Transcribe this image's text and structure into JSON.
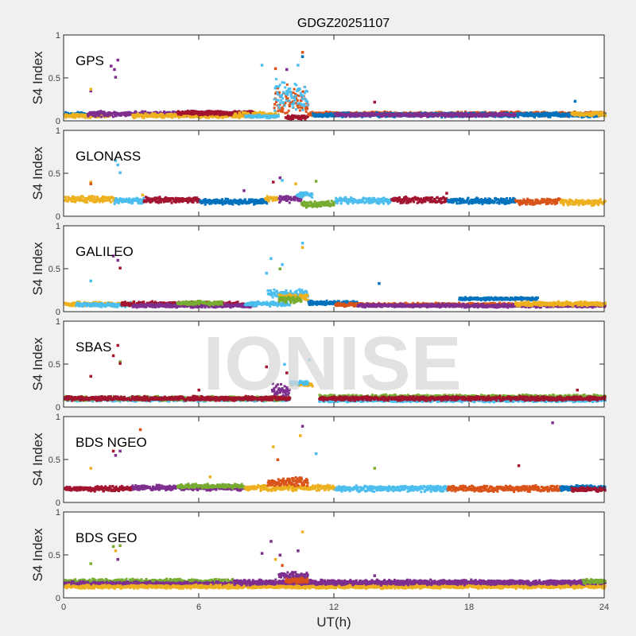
{
  "title": "GDGZ20251107",
  "watermark": "IONISE",
  "colors": {
    "blue": "#0072BD",
    "orange": "#D95319",
    "yellow": "#EDB120",
    "purple": "#7E2F8E",
    "green": "#77AC30",
    "cyan": "#4DBEEE",
    "red": "#A2142F"
  },
  "chart_data": {
    "type": "scatter",
    "title": "GDGZ20251107",
    "xlabel": "UT(h)",
    "ylabel": "S4 Index",
    "xlim": [
      0,
      24
    ],
    "ylim": [
      0,
      1
    ],
    "xticks": [
      "0",
      "6",
      "12",
      "18",
      "24"
    ],
    "yticks": [
      "0",
      "0.5",
      "1"
    ],
    "grid": false,
    "panels": [
      {
        "label": "GPS",
        "segments": [
          [
            0,
            1,
            0.08,
            0.03,
            "blue"
          ],
          [
            0,
            2,
            0.06,
            0.03,
            "yellow"
          ],
          [
            1,
            8,
            0.08,
            0.035,
            "purple"
          ],
          [
            3,
            8,
            0.06,
            0.03,
            "yellow"
          ],
          [
            5,
            8.5,
            0.09,
            0.03,
            "red"
          ],
          [
            7.5,
            9.5,
            0.07,
            0.04,
            "yellow"
          ],
          [
            8,
            9.5,
            0.05,
            0.02,
            "cyan"
          ],
          [
            9.3,
            10.8,
            0.25,
            0.2,
            "orange"
          ],
          [
            9.3,
            10.8,
            0.3,
            0.2,
            "cyan"
          ],
          [
            9.8,
            10.8,
            0.04,
            0.03,
            "red"
          ],
          [
            10.8,
            24,
            0.08,
            0.03,
            "orange"
          ],
          [
            11,
            24,
            0.07,
            0.03,
            "blue"
          ],
          [
            12,
            20,
            0.07,
            0.025,
            "purple"
          ],
          [
            22.5,
            24,
            0.08,
            0.03,
            "yellow"
          ]
        ],
        "points": [
          [
            1.2,
            0.35,
            "purple"
          ],
          [
            1.2,
            0.37,
            "yellow"
          ],
          [
            2.1,
            0.64,
            "purple"
          ],
          [
            2.25,
            0.6,
            "purple"
          ],
          [
            2.4,
            0.71,
            "purple"
          ],
          [
            2.3,
            0.51,
            "purple"
          ],
          [
            8.8,
            0.65,
            "cyan"
          ],
          [
            9.4,
            0.61,
            "orange"
          ],
          [
            9.9,
            0.6,
            "purple"
          ],
          [
            10.4,
            0.65,
            "cyan"
          ],
          [
            10.6,
            0.8,
            "orange"
          ],
          [
            10.6,
            0.75,
            "blue"
          ],
          [
            13.8,
            0.22,
            "red"
          ],
          [
            22.7,
            0.23,
            "blue"
          ]
        ]
      },
      {
        "label": "GLONASS",
        "segments": [
          [
            0,
            2.2,
            0.2,
            0.04,
            "yellow"
          ],
          [
            2.2,
            3.5,
            0.18,
            0.04,
            "cyan"
          ],
          [
            3.5,
            6,
            0.19,
            0.04,
            "red"
          ],
          [
            6,
            9,
            0.17,
            0.04,
            "blue"
          ],
          [
            8.9,
            9.5,
            0.2,
            0.04,
            "yellow"
          ],
          [
            9.5,
            10.5,
            0.2,
            0.05,
            "purple"
          ],
          [
            10.3,
            11,
            0.25,
            0.04,
            "cyan"
          ],
          [
            10.5,
            12,
            0.14,
            0.04,
            "green"
          ],
          [
            12,
            14.5,
            0.18,
            0.04,
            "cyan"
          ],
          [
            14.5,
            17,
            0.19,
            0.04,
            "red"
          ],
          [
            17,
            20,
            0.18,
            0.04,
            "blue"
          ],
          [
            20,
            22,
            0.17,
            0.04,
            "orange"
          ],
          [
            22,
            24,
            0.16,
            0.04,
            "yellow"
          ]
        ],
        "points": [
          [
            1.2,
            0.4,
            "yellow"
          ],
          [
            1.2,
            0.38,
            "orange"
          ],
          [
            2.3,
            0.65,
            "cyan"
          ],
          [
            2.4,
            0.6,
            "cyan"
          ],
          [
            2.5,
            0.51,
            "cyan"
          ],
          [
            3.5,
            0.25,
            "yellow"
          ],
          [
            8,
            0.3,
            "purple"
          ],
          [
            9.3,
            0.4,
            "red"
          ],
          [
            9.6,
            0.45,
            "purple"
          ],
          [
            9.7,
            0.42,
            "cyan"
          ],
          [
            10.3,
            0.38,
            "yellow"
          ],
          [
            11.2,
            0.41,
            "green"
          ],
          [
            12.5,
            0.22,
            "cyan"
          ],
          [
            17,
            0.27,
            "red"
          ]
        ]
      },
      {
        "label": "GALILEO",
        "segments": [
          [
            0,
            3,
            0.09,
            0.03,
            "yellow"
          ],
          [
            0.5,
            3,
            0.08,
            0.03,
            "cyan"
          ],
          [
            2.5,
            8,
            0.09,
            0.03,
            "red"
          ],
          [
            3,
            8.5,
            0.07,
            0.025,
            "purple"
          ],
          [
            5,
            7,
            0.1,
            0.03,
            "green"
          ],
          [
            8,
            10,
            0.09,
            0.03,
            "cyan"
          ],
          [
            9,
            10.8,
            0.2,
            0.06,
            "cyan"
          ],
          [
            9.5,
            10.8,
            0.17,
            0.04,
            "yellow"
          ],
          [
            9.5,
            10.5,
            0.14,
            0.04,
            "green"
          ],
          [
            10.8,
            13,
            0.1,
            0.03,
            "blue"
          ],
          [
            12,
            24,
            0.08,
            0.025,
            "orange"
          ],
          [
            13,
            24,
            0.07,
            0.025,
            "purple"
          ],
          [
            17.5,
            21,
            0.15,
            0.02,
            "blue"
          ],
          [
            20,
            24,
            0.09,
            0.03,
            "yellow"
          ]
        ],
        "points": [
          [
            1.2,
            0.36,
            "cyan"
          ],
          [
            2.2,
            0.65,
            "purple"
          ],
          [
            2.4,
            0.6,
            "purple"
          ],
          [
            2.5,
            0.51,
            "red"
          ],
          [
            9,
            0.45,
            "cyan"
          ],
          [
            9.2,
            0.62,
            "cyan"
          ],
          [
            9.6,
            0.5,
            "green"
          ],
          [
            9.7,
            0.55,
            "cyan"
          ],
          [
            10.6,
            0.8,
            "cyan"
          ],
          [
            10.6,
            0.75,
            "yellow"
          ],
          [
            14,
            0.33,
            "blue"
          ]
        ]
      },
      {
        "label": "SBAS",
        "segments": [
          [
            0,
            10,
            0.09,
            0.03,
            "cyan"
          ],
          [
            0,
            10,
            0.1,
            0.03,
            "green"
          ],
          [
            0,
            10,
            0.1,
            0.03,
            "red"
          ],
          [
            9.2,
            10,
            0.2,
            0.08,
            "purple"
          ],
          [
            10,
            11,
            0.26,
            0.02,
            "yellow"
          ],
          [
            10,
            10.8,
            0.28,
            0.03,
            "cyan"
          ],
          [
            11.3,
            24,
            0.08,
            0.025,
            "cyan"
          ],
          [
            11.3,
            24,
            0.12,
            0.025,
            "green"
          ],
          [
            11.3,
            24,
            0.1,
            0.03,
            "red"
          ]
        ],
        "points": [
          [
            1.2,
            0.36,
            "red"
          ],
          [
            2.2,
            0.6,
            "red"
          ],
          [
            2.4,
            0.72,
            "red"
          ],
          [
            2.5,
            0.53,
            "green"
          ],
          [
            2.5,
            0.51,
            "red"
          ],
          [
            6,
            0.2,
            "red"
          ],
          [
            9,
            0.47,
            "red"
          ],
          [
            9.8,
            0.5,
            "cyan"
          ],
          [
            9.9,
            0.4,
            "red"
          ],
          [
            10.9,
            0.55,
            "cyan"
          ],
          [
            22.8,
            0.2,
            "red"
          ]
        ]
      },
      {
        "label": "BDS NGEO",
        "segments": [
          [
            0,
            3,
            0.16,
            0.035,
            "red"
          ],
          [
            3,
            8,
            0.17,
            0.035,
            "purple"
          ],
          [
            5,
            8,
            0.19,
            0.03,
            "green"
          ],
          [
            8,
            12,
            0.17,
            0.04,
            "yellow"
          ],
          [
            9,
            10.8,
            0.24,
            0.06,
            "orange"
          ],
          [
            12,
            17,
            0.16,
            0.04,
            "cyan"
          ],
          [
            17,
            22,
            0.16,
            0.04,
            "orange"
          ],
          [
            22,
            24,
            0.17,
            0.035,
            "blue"
          ],
          [
            22.5,
            24,
            0.15,
            0.03,
            "red"
          ]
        ],
        "points": [
          [
            1.2,
            0.4,
            "yellow"
          ],
          [
            2.2,
            0.6,
            "red"
          ],
          [
            2.3,
            0.55,
            "purple"
          ],
          [
            2.5,
            0.6,
            "purple"
          ],
          [
            3.4,
            0.85,
            "orange"
          ],
          [
            6.5,
            0.3,
            "yellow"
          ],
          [
            9.3,
            0.65,
            "yellow"
          ],
          [
            9.5,
            0.5,
            "orange"
          ],
          [
            10.6,
            0.89,
            "purple"
          ],
          [
            10.5,
            0.78,
            "yellow"
          ],
          [
            11.2,
            0.57,
            "cyan"
          ],
          [
            13.8,
            0.4,
            "green"
          ],
          [
            20.2,
            0.43,
            "red"
          ],
          [
            21.7,
            0.93,
            "purple"
          ]
        ]
      },
      {
        "label": "BDS GEO",
        "segments": [
          [
            0,
            7.5,
            0.19,
            0.035,
            "green"
          ],
          [
            0,
            24,
            0.16,
            0.035,
            "purple"
          ],
          [
            0,
            24,
            0.13,
            0.025,
            "yellow"
          ],
          [
            7.5,
            24,
            0.18,
            0.035,
            "purple"
          ],
          [
            9.5,
            10.8,
            0.26,
            0.05,
            "purple"
          ],
          [
            9.8,
            10.8,
            0.2,
            0.04,
            "orange"
          ],
          [
            23,
            24,
            0.19,
            0.03,
            "green"
          ]
        ],
        "points": [
          [
            1.2,
            0.4,
            "green"
          ],
          [
            2.2,
            0.6,
            "green"
          ],
          [
            2.3,
            0.55,
            "yellow"
          ],
          [
            2.4,
            0.45,
            "purple"
          ],
          [
            2.5,
            0.61,
            "green"
          ],
          [
            8.8,
            0.52,
            "purple"
          ],
          [
            9.2,
            0.66,
            "purple"
          ],
          [
            9.4,
            0.45,
            "yellow"
          ],
          [
            9.6,
            0.5,
            "purple"
          ],
          [
            9.7,
            0.38,
            "orange"
          ],
          [
            10.4,
            0.55,
            "purple"
          ],
          [
            10.6,
            0.77,
            "yellow"
          ],
          [
            13.8,
            0.26,
            "purple"
          ]
        ]
      }
    ]
  }
}
